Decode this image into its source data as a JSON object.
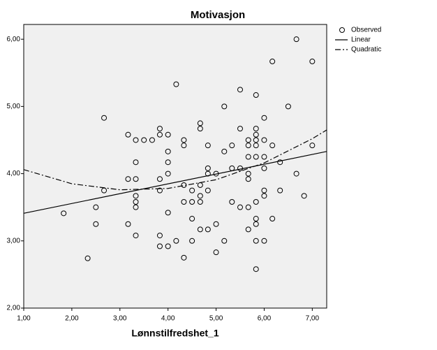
{
  "chart_data": {
    "type": "scatter",
    "title": "Motivasjon",
    "x_label": "Lønnstilfredshet_1",
    "xlim": [
      1,
      7.3
    ],
    "ylim": [
      2,
      6.22
    ],
    "xticks": [
      {
        "value": 1,
        "label": "1,00"
      },
      {
        "value": 2,
        "label": "2,00"
      },
      {
        "value": 3,
        "label": "3,00"
      },
      {
        "value": 4,
        "label": "4,00"
      },
      {
        "value": 5,
        "label": "5,00"
      },
      {
        "value": 6,
        "label": "6,00"
      },
      {
        "value": 7,
        "label": "7,00"
      }
    ],
    "yticks": [
      {
        "value": 2,
        "label": "2,00"
      },
      {
        "value": 3,
        "label": "3,00"
      },
      {
        "value": 4,
        "label": "4,00"
      },
      {
        "value": 5,
        "label": "5,00"
      },
      {
        "value": 6,
        "label": "6,00"
      }
    ],
    "series": [
      {
        "name": "Observed",
        "style": "markers",
        "color": "#000000",
        "x": [
          1.83,
          2.33,
          2.5,
          2.5,
          2.67,
          2.67,
          3.17,
          3.17,
          3.17,
          3.33,
          3.33,
          3.33,
          3.33,
          3.33,
          3.33,
          3.33,
          3.5,
          3.67,
          3.83,
          3.83,
          3.83,
          3.83,
          3.83,
          3.83,
          4,
          4,
          4,
          4,
          4,
          4,
          4.17,
          4.17,
          4.33,
          4.33,
          4.33,
          4.33,
          4.33,
          4.5,
          4.5,
          4.5,
          4.5,
          4.67,
          4.67,
          4.67,
          4.67,
          4.67,
          4.67,
          4.83,
          4.83,
          4.83,
          4.83,
          4.83,
          5,
          5,
          5,
          5.17,
          5.17,
          5.17,
          5.33,
          5.33,
          5.33,
          5.5,
          5.5,
          5.5,
          5.5,
          5.67,
          5.67,
          5.67,
          5.67,
          5.67,
          5.67,
          5.67,
          5.83,
          5.83,
          5.83,
          5.83,
          5.83,
          5.83,
          5.83,
          5.83,
          5.83,
          5.83,
          5.83,
          6,
          6,
          6,
          6,
          6,
          6,
          6,
          6.17,
          6.17,
          6.17,
          6.33,
          6.33,
          6.5,
          6.67,
          6.67,
          6.83,
          7,
          7
        ],
        "values": [
          3.41,
          2.74,
          3.5,
          3.25,
          4.83,
          3.75,
          4.58,
          3.92,
          3.25,
          4.5,
          4.17,
          3.92,
          3.67,
          3.58,
          3.5,
          3.08,
          4.5,
          4.5,
          4.67,
          4.58,
          3.92,
          3.75,
          3.08,
          2.92,
          4.58,
          4.33,
          4.17,
          4,
          3.42,
          2.92,
          5.33,
          3,
          4.5,
          4.42,
          3.83,
          3.58,
          2.75,
          3.75,
          3.58,
          3.33,
          3,
          4.75,
          4.67,
          3.83,
          3.67,
          3.58,
          3.17,
          4.42,
          4.08,
          4,
          3.75,
          3.17,
          4,
          3.25,
          2.83,
          5,
          4.33,
          3,
          4.42,
          4.08,
          3.58,
          5.25,
          4.67,
          4.08,
          3.5,
          4.5,
          4.42,
          4.25,
          4,
          3.92,
          3.5,
          3.17,
          5.17,
          4.67,
          4.58,
          4.5,
          4.42,
          4.25,
          3.58,
          3.33,
          3.25,
          3,
          2.58,
          4.83,
          4.5,
          4.25,
          4.08,
          3.75,
          3.67,
          3,
          5.67,
          4.42,
          3.33,
          4.17,
          3.75,
          5,
          6,
          4,
          3.67,
          5.67,
          4.42
        ]
      },
      {
        "name": "Linear",
        "style": "solid",
        "color": "#000000",
        "x": [
          1,
          7.3
        ],
        "values": [
          3.41,
          4.33
        ]
      },
      {
        "name": "Quadratic",
        "style": "dash-dot",
        "color": "#000000",
        "x": [
          1,
          2,
          3,
          4,
          5,
          6,
          7,
          7.3
        ],
        "values": [
          4.06,
          3.85,
          3.76,
          3.78,
          3.91,
          4.16,
          4.52,
          4.65
        ]
      }
    ]
  }
}
